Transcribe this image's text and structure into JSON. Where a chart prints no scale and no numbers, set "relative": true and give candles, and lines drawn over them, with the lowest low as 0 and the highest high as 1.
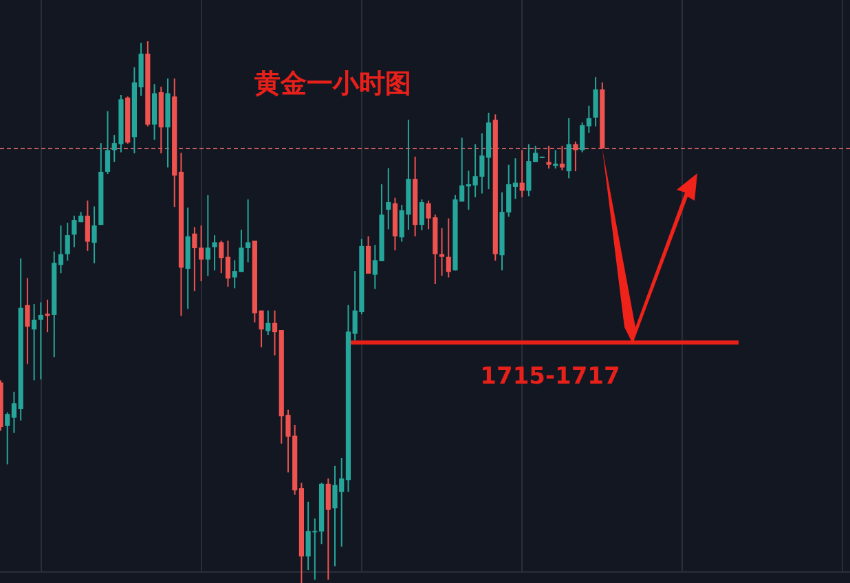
{
  "chart_data": {
    "type": "candlestick",
    "title": "黄金一小时图",
    "relative": true,
    "grid": "x",
    "categories": [
      null,
      null,
      null,
      null,
      null,
      null,
      null,
      null,
      null,
      null,
      null,
      null,
      null,
      null,
      null,
      null,
      null,
      null,
      null,
      null,
      null,
      null,
      null,
      null,
      null,
      null,
      null,
      null,
      null,
      null,
      null,
      null,
      null,
      null,
      null,
      null,
      null,
      null,
      null,
      null,
      null,
      null,
      null,
      null,
      null,
      null,
      null,
      null,
      null,
      null,
      null,
      null,
      null,
      null,
      null,
      null,
      null,
      null,
      null,
      null,
      null,
      null,
      null,
      null,
      null,
      null,
      null,
      null,
      null,
      null,
      null,
      null,
      null,
      null,
      null,
      null,
      null,
      null,
      null,
      null,
      null,
      null,
      null,
      null,
      null,
      null,
      null,
      null,
      null,
      null,
      null
    ],
    "ohlc": [
      [
        0.37,
        0.374,
        0.281,
        0.288
      ],
      [
        0.29,
        0.315,
        0.219,
        0.312
      ],
      [
        0.305,
        0.353,
        0.277,
        0.332
      ],
      [
        0.321,
        0.599,
        0.3,
        0.508
      ],
      [
        0.513,
        0.563,
        0.404,
        0.473
      ],
      [
        0.468,
        0.515,
        0.374,
        0.486
      ],
      [
        0.486,
        0.518,
        0.376,
        0.495
      ],
      [
        0.497,
        0.523,
        0.463,
        0.493
      ],
      [
        0.495,
        0.612,
        0.417,
        0.591
      ],
      [
        0.587,
        0.66,
        0.572,
        0.607
      ],
      [
        0.607,
        0.665,
        0.595,
        0.642
      ],
      [
        0.643,
        0.678,
        0.62,
        0.67
      ],
      [
        0.666,
        0.685,
        0.666,
        0.678
      ],
      [
        0.678,
        0.706,
        0.613,
        0.63
      ],
      [
        0.628,
        0.695,
        0.59,
        0.66
      ],
      [
        0.661,
        0.812,
        0.661,
        0.759
      ],
      [
        0.759,
        0.871,
        0.755,
        0.799
      ],
      [
        0.799,
        0.827,
        0.777,
        0.812
      ],
      [
        0.81,
        0.901,
        0.795,
        0.893
      ],
      [
        0.896,
        0.898,
        0.811,
        0.813
      ],
      [
        0.823,
        0.952,
        0.793,
        0.924
      ],
      [
        0.915,
        0.997,
        0.899,
        0.977
      ],
      [
        0.977,
        1.0,
        0.843,
        0.846
      ],
      [
        0.846,
        0.921,
        0.818,
        0.904
      ],
      [
        0.906,
        0.916,
        0.793,
        0.841
      ],
      [
        0.841,
        0.931,
        0.767,
        0.904
      ],
      [
        0.898,
        0.931,
        0.694,
        0.752
      ],
      [
        0.759,
        0.794,
        0.493,
        0.582
      ],
      [
        0.58,
        0.693,
        0.506,
        0.64
      ],
      [
        0.645,
        0.657,
        0.539,
        0.618
      ],
      [
        0.619,
        0.66,
        0.557,
        0.597
      ],
      [
        0.597,
        0.716,
        0.567,
        0.619
      ],
      [
        0.62,
        0.642,
        0.577,
        0.629
      ],
      [
        0.629,
        0.632,
        0.572,
        0.6
      ],
      [
        0.602,
        0.632,
        0.547,
        0.562
      ],
      [
        0.564,
        0.596,
        0.544,
        0.576
      ],
      [
        0.574,
        0.652,
        0.574,
        0.619
      ],
      [
        0.618,
        0.708,
        0.592,
        0.629
      ],
      [
        0.632,
        0.632,
        0.481,
        0.498
      ],
      [
        0.503,
        0.503,
        0.435,
        0.468
      ],
      [
        0.465,
        0.503,
        0.458,
        0.48
      ],
      [
        0.48,
        0.503,
        0.42,
        0.463
      ],
      [
        0.467,
        0.467,
        0.257,
        0.308
      ],
      [
        0.31,
        0.32,
        0.204,
        0.27
      ],
      [
        0.272,
        0.292,
        0.163,
        0.171
      ],
      [
        0.175,
        0.185,
        0.0,
        0.049
      ],
      [
        0.049,
        0.15,
        0.024,
        0.096
      ],
      [
        0.094,
        0.119,
        0.006,
        0.096
      ],
      [
        0.095,
        0.185,
        0.072,
        0.183
      ],
      [
        0.183,
        0.193,
        0.006,
        0.135
      ],
      [
        0.138,
        0.216,
        0.031,
        0.181
      ],
      [
        0.168,
        0.231,
        0.067,
        0.193
      ],
      [
        0.19,
        0.513,
        0.168,
        0.464
      ],
      [
        0.46,
        0.576,
        0.448,
        0.503
      ],
      [
        0.5,
        0.635,
        0.496,
        0.622
      ],
      [
        0.622,
        0.64,
        0.571,
        0.571
      ],
      [
        0.569,
        0.624,
        0.543,
        0.596
      ],
      [
        0.594,
        0.736,
        0.594,
        0.68
      ],
      [
        0.689,
        0.766,
        0.653,
        0.703
      ],
      [
        0.701,
        0.711,
        0.614,
        0.64
      ],
      [
        0.638,
        0.698,
        0.63,
        0.688
      ],
      [
        0.68,
        0.855,
        0.652,
        0.746
      ],
      [
        0.746,
        0.787,
        0.64,
        0.661
      ],
      [
        0.661,
        0.708,
        0.651,
        0.703
      ],
      [
        0.701,
        0.706,
        0.653,
        0.673
      ],
      [
        0.675,
        0.68,
        0.552,
        0.607
      ],
      [
        0.607,
        0.655,
        0.567,
        0.602
      ],
      [
        0.602,
        0.673,
        0.564,
        0.574
      ],
      [
        0.577,
        0.716,
        0.577,
        0.708
      ],
      [
        0.704,
        0.822,
        0.704,
        0.734
      ],
      [
        0.732,
        0.761,
        0.689,
        0.736
      ],
      [
        0.734,
        0.81,
        0.712,
        0.751
      ],
      [
        0.75,
        0.83,
        0.719,
        0.789
      ],
      [
        0.785,
        0.868,
        0.727,
        0.85
      ],
      [
        0.855,
        0.865,
        0.595,
        0.607
      ],
      [
        0.605,
        0.721,
        0.577,
        0.685
      ],
      [
        0.684,
        0.772,
        0.676,
        0.736
      ],
      [
        0.731,
        0.784,
        0.709,
        0.739
      ],
      [
        0.739,
        0.799,
        0.712,
        0.724
      ],
      [
        0.724,
        0.81,
        0.714,
        0.779
      ],
      [
        0.777,
        0.807,
        0.777,
        0.794
      ],
      [
        0.785,
        0.787,
        0.785,
        0.787
      ],
      [
        0.777,
        0.807,
        0.765,
        0.772
      ],
      [
        0.77,
        0.799,
        0.765,
        0.774
      ],
      [
        0.774,
        0.807,
        0.762,
        0.767
      ],
      [
        0.76,
        0.858,
        0.747,
        0.81
      ],
      [
        0.81,
        0.815,
        0.76,
        0.799
      ],
      [
        0.799,
        0.85,
        0.795,
        0.845
      ],
      [
        0.843,
        0.881,
        0.831,
        0.858
      ],
      [
        0.859,
        0.934,
        0.843,
        0.911
      ],
      [
        0.911,
        0.924,
        0.802,
        0.802
      ]
    ],
    "ref_lines": [
      {
        "axis": "y",
        "value": 0.802,
        "line_style": "dashed",
        "color": "#c25b5f"
      },
      {
        "axis": "y",
        "value": 0.444,
        "color": "#e8201a",
        "line_style": "solid"
      }
    ],
    "annotations": [
      "1715-1717"
    ]
  }
}
